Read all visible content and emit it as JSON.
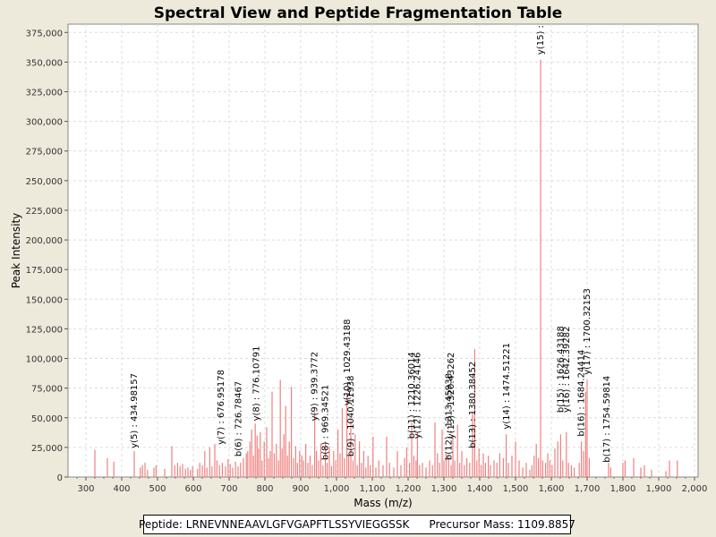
{
  "chart_data": {
    "type": "bar",
    "title": "Spectral View and Peptide Fragmentation Table",
    "xlabel": "Mass (m/z)",
    "ylabel": "Peak Intensity",
    "xlim": [
      250,
      2010
    ],
    "ylim": [
      0,
      382000
    ],
    "xticks": [
      300,
      400,
      500,
      600,
      700,
      800,
      900,
      1000,
      1100,
      1200,
      1300,
      1400,
      1500,
      1600,
      1700,
      1800,
      1900,
      2000
    ],
    "xtick_labels": [
      "300",
      "400",
      "500",
      "600",
      "700",
      "800",
      "900",
      "1,000",
      "1,100",
      "1,200",
      "1,300",
      "1,400",
      "1,500",
      "1,600",
      "1,700",
      "1,800",
      "1,900",
      "2,000"
    ],
    "yticks": [
      0,
      25000,
      50000,
      75000,
      100000,
      125000,
      150000,
      175000,
      200000,
      225000,
      250000,
      275000,
      300000,
      325000,
      350000,
      375000
    ],
    "ytick_labels": [
      "0",
      "25,000",
      "50,000",
      "75,000",
      "100,000",
      "125,000",
      "150,000",
      "175,000",
      "200,000",
      "225,000",
      "250,000",
      "275,000",
      "300,000",
      "325,000",
      "350,000",
      "375,000"
    ],
    "grid": true,
    "series": [
      {
        "name": "peaks",
        "color": "#f08080",
        "points": [
          [
            325,
            23000
          ],
          [
            360,
            16000
          ],
          [
            378,
            13000
          ],
          [
            435,
            22000
          ],
          [
            452,
            8000
          ],
          [
            458,
            10000
          ],
          [
            465,
            12000
          ],
          [
            472,
            6000
          ],
          [
            490,
            8000
          ],
          [
            496,
            10000
          ],
          [
            520,
            7000
          ],
          [
            540,
            26000
          ],
          [
            548,
            10000
          ],
          [
            556,
            12000
          ],
          [
            563,
            9000
          ],
          [
            570,
            11000
          ],
          [
            578,
            7000
          ],
          [
            585,
            8000
          ],
          [
            592,
            6000
          ],
          [
            598,
            9000
          ],
          [
            612,
            7000
          ],
          [
            618,
            12000
          ],
          [
            625,
            10000
          ],
          [
            632,
            22000
          ],
          [
            638,
            8000
          ],
          [
            646,
            25000
          ],
          [
            652,
            9000
          ],
          [
            660,
            28000
          ],
          [
            666,
            14000
          ],
          [
            673,
            10000
          ],
          [
            681,
            12000
          ],
          [
            690,
            9000
          ],
          [
            697,
            15000
          ],
          [
            703,
            11000
          ],
          [
            710,
            8000
          ],
          [
            718,
            13000
          ],
          [
            725,
            9000
          ],
          [
            732,
            12000
          ],
          [
            740,
            16000
          ],
          [
            748,
            20000
          ],
          [
            752,
            22000
          ],
          [
            758,
            30000
          ],
          [
            763,
            40000
          ],
          [
            768,
            18000
          ],
          [
            773,
            45000
          ],
          [
            778,
            35000
          ],
          [
            782,
            24000
          ],
          [
            787,
            38000
          ],
          [
            792,
            14000
          ],
          [
            798,
            30000
          ],
          [
            805,
            42000
          ],
          [
            810,
            16000
          ],
          [
            815,
            22000
          ],
          [
            820,
            72000
          ],
          [
            826,
            20000
          ],
          [
            832,
            28000
          ],
          [
            838,
            14000
          ],
          [
            843,
            82000
          ],
          [
            848,
            24000
          ],
          [
            853,
            36000
          ],
          [
            858,
            60000
          ],
          [
            863,
            18000
          ],
          [
            868,
            30000
          ],
          [
            874,
            76000
          ],
          [
            880,
            16000
          ],
          [
            886,
            26000
          ],
          [
            891,
            12000
          ],
          [
            897,
            22000
          ],
          [
            903,
            18000
          ],
          [
            908,
            14000
          ],
          [
            914,
            28000
          ],
          [
            920,
            12000
          ],
          [
            926,
            18000
          ],
          [
            932,
            10000
          ],
          [
            939,
            55000
          ],
          [
            944,
            22000
          ],
          [
            950,
            14000
          ],
          [
            956,
            28000
          ],
          [
            962,
            10000
          ],
          [
            969,
            30000
          ],
          [
            974,
            12000
          ],
          [
            980,
            26000
          ],
          [
            986,
            9000
          ],
          [
            992,
            22000
          ],
          [
            998,
            14000
          ],
          [
            1004,
            40000
          ],
          [
            1010,
            20000
          ],
          [
            1016,
            58000
          ],
          [
            1022,
            16000
          ],
          [
            1029,
            70000
          ],
          [
            1034,
            18000
          ],
          [
            1040,
            48000
          ],
          [
            1046,
            14000
          ],
          [
            1052,
            36000
          ],
          [
            1058,
            10000
          ],
          [
            1064,
            30000
          ],
          [
            1070,
            12000
          ],
          [
            1076,
            22000
          ],
          [
            1082,
            8000
          ],
          [
            1088,
            18000
          ],
          [
            1094,
            10000
          ],
          [
            1102,
            34000
          ],
          [
            1110,
            8000
          ],
          [
            1118,
            14000
          ],
          [
            1130,
            10000
          ],
          [
            1140,
            34000
          ],
          [
            1148,
            12000
          ],
          [
            1160,
            8000
          ],
          [
            1170,
            22000
          ],
          [
            1180,
            10000
          ],
          [
            1190,
            16000
          ],
          [
            1196,
            25000
          ],
          [
            1204,
            12000
          ],
          [
            1210,
            46000
          ],
          [
            1216,
            18000
          ],
          [
            1222,
            14000
          ],
          [
            1226,
            38000
          ],
          [
            1232,
            10000
          ],
          [
            1240,
            12000
          ],
          [
            1250,
            8000
          ],
          [
            1260,
            14000
          ],
          [
            1268,
            10000
          ],
          [
            1275,
            46000
          ],
          [
            1282,
            20000
          ],
          [
            1288,
            12000
          ],
          [
            1295,
            40000
          ],
          [
            1300,
            14000
          ],
          [
            1306,
            20000
          ],
          [
            1313,
            18000
          ],
          [
            1320,
            10000
          ],
          [
            1325,
            34000
          ],
          [
            1330,
            14000
          ],
          [
            1338,
            44000
          ],
          [
            1344,
            12000
          ],
          [
            1350,
            22000
          ],
          [
            1357,
            10000
          ],
          [
            1364,
            16000
          ],
          [
            1372,
            12000
          ],
          [
            1380,
            55000
          ],
          [
            1386,
            108000
          ],
          [
            1392,
            14000
          ],
          [
            1398,
            24000
          ],
          [
            1404,
            10000
          ],
          [
            1410,
            20000
          ],
          [
            1416,
            12000
          ],
          [
            1424,
            18000
          ],
          [
            1430,
            10000
          ],
          [
            1440,
            14000
          ],
          [
            1448,
            12000
          ],
          [
            1456,
            20000
          ],
          [
            1466,
            16000
          ],
          [
            1474,
            36000
          ],
          [
            1480,
            12000
          ],
          [
            1490,
            18000
          ],
          [
            1500,
            30000
          ],
          [
            1510,
            14000
          ],
          [
            1520,
            8000
          ],
          [
            1530,
            12000
          ],
          [
            1540,
            6000
          ],
          [
            1546,
            10000
          ],
          [
            1552,
            18000
          ],
          [
            1558,
            28000
          ],
          [
            1564,
            16000
          ],
          [
            1570,
            352000
          ],
          [
            1576,
            14000
          ],
          [
            1584,
            12000
          ],
          [
            1590,
            20000
          ],
          [
            1596,
            14000
          ],
          [
            1602,
            10000
          ],
          [
            1610,
            24000
          ],
          [
            1618,
            30000
          ],
          [
            1626,
            36000
          ],
          [
            1632,
            14000
          ],
          [
            1642,
            38000
          ],
          [
            1648,
            12000
          ],
          [
            1656,
            10000
          ],
          [
            1664,
            8000
          ],
          [
            1678,
            12000
          ],
          [
            1684,
            30000
          ],
          [
            1690,
            22000
          ],
          [
            1696,
            72000
          ],
          [
            1700,
            82000
          ],
          [
            1706,
            16000
          ],
          [
            1760,
            12000
          ],
          [
            1766,
            8000
          ],
          [
            1800,
            12000
          ],
          [
            1806,
            14000
          ],
          [
            1830,
            16000
          ],
          [
            1850,
            8000
          ],
          [
            1860,
            10000
          ],
          [
            1880,
            6000
          ],
          [
            1920,
            5000
          ],
          [
            1930,
            14000
          ],
          [
            1952,
            14000
          ]
        ]
      }
    ],
    "annotations": [
      {
        "x": 434.98157,
        "y": 22000,
        "text": "y(5) : 434.98157"
      },
      {
        "x": 676.95178,
        "y": 25000,
        "text": "y(7) : 676.95178"
      },
      {
        "x": 726.78467,
        "y": 15000,
        "text": "b(6) : 726.78467"
      },
      {
        "x": 776.10791,
        "y": 45000,
        "text": "y(8) : 776.10791"
      },
      {
        "x": 939.3772,
        "y": 45000,
        "text": "y(9) : 939.3772"
      },
      {
        "x": 969.34521,
        "y": 12000,
        "text": "b(8) : 969.34521"
      },
      {
        "x": 1029.43188,
        "y": 58000,
        "text": "y(10) : 1029.43188"
      },
      {
        "x": 1040.11938,
        "y": 15000,
        "text": "b(9) : 1040.11938"
      },
      {
        "x": 1210.36014,
        "y": 30000,
        "text": "b(11) : 1210.36014"
      },
      {
        "x": 1226.24146,
        "y": 30000,
        "text": "y(12) : 1226.24146"
      },
      {
        "x": 1313.45938,
        "y": 12000,
        "text": "b(12) : 1313.45938"
      },
      {
        "x": 1320.43262,
        "y": 30000,
        "text": "y(13) : 1320.43262"
      },
      {
        "x": 1380.38452,
        "y": 22000,
        "text": "b(13) : 1380.38452"
      },
      {
        "x": 1474.51221,
        "y": 38000,
        "text": "y(14) : 1474.51221"
      },
      {
        "x": 1570.3,
        "y": 354000,
        "text": "y(15) : "
      },
      {
        "x": 1626.43188,
        "y": 52000,
        "text": "b(15) : 1626.43188"
      },
      {
        "x": 1642.39282,
        "y": 52000,
        "text": "y(16) : 1642.39282"
      },
      {
        "x": 1684.24414,
        "y": 32000,
        "text": "b(16) : 1684.24414"
      },
      {
        "x": 1700.32153,
        "y": 84000,
        "text": "y(17) : 1700.32153"
      },
      {
        "x": 1754.59814,
        "y": 10000,
        "text": "b(17) : 1754.59814"
      }
    ]
  },
  "footer": {
    "peptide": "Peptide: LRNEVNNEAAVLGFVGAPFTLSSYVIEGGSSK",
    "precursor": "Precursor Mass: 1109.8857"
  }
}
